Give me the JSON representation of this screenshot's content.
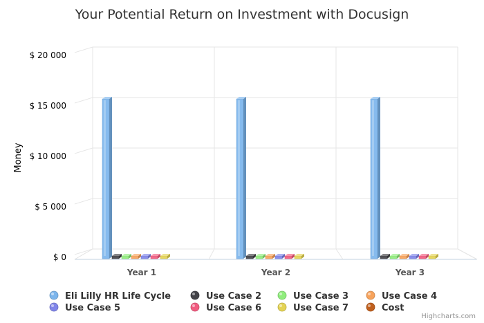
{
  "chart_data": {
    "type": "bar",
    "title": "Your Potential Return on Investment with Docusign",
    "xlabel": "",
    "ylabel": "Money",
    "categories": [
      "Year 1",
      "Year 2",
      "Year 3"
    ],
    "ylim": [
      0,
      20000
    ],
    "yticks": [
      0,
      5000,
      10000,
      15000,
      20000
    ],
    "ytick_labels": [
      "$ 0",
      "$ 5 000",
      "$ 10 000",
      "$ 15 000",
      "$ 20 000"
    ],
    "grid": true,
    "legend_position": "bottom",
    "credit": "Highcharts.com",
    "series": [
      {
        "name": "Eli Lilly HR Life Cycle",
        "color": "#7cb5ec",
        "values": [
          15600,
          15600,
          15600
        ]
      },
      {
        "name": "Use Case 2",
        "color": "#434348",
        "values": [
          0,
          0,
          0
        ]
      },
      {
        "name": "Use Case 3",
        "color": "#90ed7d",
        "values": [
          0,
          0,
          0
        ]
      },
      {
        "name": "Use Case 4",
        "color": "#f7a35c",
        "values": [
          0,
          0,
          0
        ]
      },
      {
        "name": "Use Case 5",
        "color": "#8085e9",
        "values": [
          0,
          0,
          0
        ]
      },
      {
        "name": "Use Case 6",
        "color": "#f15c80",
        "values": [
          0,
          0,
          0
        ]
      },
      {
        "name": "Use Case 7",
        "color": "#e4d354",
        "values": [
          0,
          0,
          0
        ]
      },
      {
        "name": "Cost",
        "color": "#c0601e",
        "values": [
          null,
          null,
          null
        ]
      }
    ]
  }
}
